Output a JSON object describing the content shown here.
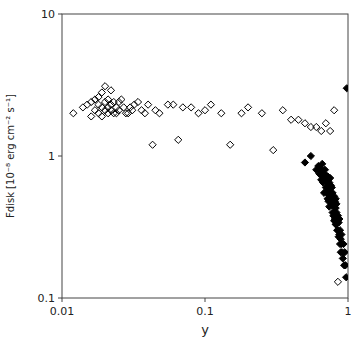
{
  "chart_data": {
    "type": "scatter",
    "xlabel": "y",
    "ylabel": "Fdisk [10⁻⁸ erg cm⁻² s⁻¹]",
    "log": true,
    "grid": false,
    "xlim": [
      0.01,
      1.0
    ],
    "ylim": [
      0.1,
      10.0
    ],
    "xticks": [
      0.01,
      0.1,
      1
    ],
    "yticks": [
      0.1,
      1,
      10
    ],
    "series": [
      {
        "marker": "open-diamond",
        "color": "black",
        "x": [
          0.012,
          0.014,
          0.015,
          0.016,
          0.016,
          0.017,
          0.017,
          0.018,
          0.018,
          0.018,
          0.019,
          0.019,
          0.019,
          0.02,
          0.02,
          0.02,
          0.021,
          0.021,
          0.021,
          0.022,
          0.022,
          0.022,
          0.023,
          0.023,
          0.024,
          0.024,
          0.025,
          0.025,
          0.026,
          0.027,
          0.028,
          0.029,
          0.03,
          0.031,
          0.032,
          0.034,
          0.036,
          0.038,
          0.04,
          0.043,
          0.045,
          0.048,
          0.055,
          0.06,
          0.065,
          0.07,
          0.08,
          0.09,
          0.1,
          0.11,
          0.13,
          0.15,
          0.18,
          0.2,
          0.25,
          0.3,
          0.35,
          0.4,
          0.45,
          0.5,
          0.55,
          0.6,
          0.65,
          0.7,
          0.75,
          0.8,
          0.85
        ],
        "values": [
          2.0,
          2.2,
          2.3,
          1.9,
          2.4,
          2.1,
          2.5,
          2.0,
          2.3,
          2.6,
          1.9,
          2.2,
          2.8,
          2.1,
          2.4,
          3.1,
          2.5,
          2.0,
          2.2,
          2.9,
          2.3,
          2.1,
          2.4,
          2.0,
          2.2,
          2.0,
          2.4,
          2.1,
          2.5,
          2.2,
          2.0,
          2.0,
          2.2,
          2.1,
          2.3,
          2.4,
          2.1,
          2.0,
          2.3,
          1.2,
          2.1,
          2.0,
          2.3,
          2.3,
          1.3,
          2.2,
          2.2,
          2.0,
          2.1,
          2.3,
          2.0,
          1.2,
          2.0,
          2.2,
          2.0,
          1.1,
          2.1,
          1.8,
          1.8,
          1.7,
          1.6,
          1.6,
          1.5,
          1.7,
          1.5,
          2.1,
          0.13
        ]
      },
      {
        "marker": "diamond",
        "color": "black",
        "x": [
          0.5,
          0.55,
          0.6,
          0.62,
          0.63,
          0.64,
          0.65,
          0.65,
          0.66,
          0.66,
          0.67,
          0.68,
          0.68,
          0.69,
          0.7,
          0.7,
          0.71,
          0.71,
          0.72,
          0.72,
          0.72,
          0.73,
          0.73,
          0.73,
          0.74,
          0.74,
          0.74,
          0.75,
          0.75,
          0.75,
          0.76,
          0.76,
          0.76,
          0.77,
          0.77,
          0.77,
          0.78,
          0.78,
          0.78,
          0.79,
          0.79,
          0.8,
          0.8,
          0.8,
          0.81,
          0.81,
          0.82,
          0.82,
          0.82,
          0.83,
          0.83,
          0.83,
          0.84,
          0.84,
          0.85,
          0.85,
          0.86,
          0.86,
          0.87,
          0.87,
          0.88,
          0.88,
          0.89,
          0.89,
          0.9,
          0.9,
          0.91,
          0.92,
          0.93,
          0.94,
          0.95,
          0.96,
          0.97,
          0.98
        ],
        "values": [
          0.9,
          1.0,
          0.8,
          0.85,
          0.75,
          0.82,
          0.68,
          0.78,
          0.72,
          0.88,
          0.65,
          0.75,
          0.55,
          0.8,
          0.7,
          0.6,
          0.68,
          0.55,
          0.65,
          0.72,
          0.5,
          0.62,
          0.68,
          0.48,
          0.58,
          0.65,
          0.44,
          0.52,
          0.6,
          0.7,
          0.48,
          0.55,
          0.62,
          0.45,
          0.52,
          0.6,
          0.4,
          0.5,
          0.55,
          0.38,
          0.46,
          0.52,
          0.4,
          0.35,
          0.48,
          0.36,
          0.43,
          0.33,
          0.5,
          0.4,
          0.33,
          0.46,
          0.36,
          0.3,
          0.38,
          0.3,
          0.34,
          0.27,
          0.36,
          0.28,
          0.24,
          0.3,
          0.26,
          0.21,
          0.28,
          0.24,
          0.21,
          0.19,
          0.24,
          0.17,
          0.21,
          0.17,
          0.14,
          3.0
        ]
      }
    ]
  }
}
